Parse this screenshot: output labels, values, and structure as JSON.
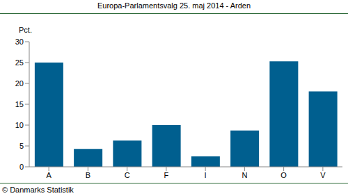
{
  "chart_data": {
    "type": "bar",
    "title": "Europa-Parlamentsvalg 25. maj 2014 - Arden",
    "y_label": "Pct.",
    "annotation": "© Danmarks Statistik",
    "categories": [
      "A",
      "B",
      "C",
      "F",
      "I",
      "N",
      "O",
      "V"
    ],
    "values": [
      25.0,
      4.3,
      6.3,
      10.0,
      2.5,
      8.7,
      25.3,
      18.1
    ],
    "color": "#005f8f",
    "ylim": [
      0,
      30
    ],
    "yticks": [
      0,
      5,
      10,
      15,
      20,
      25,
      30
    ],
    "grid": false
  }
}
